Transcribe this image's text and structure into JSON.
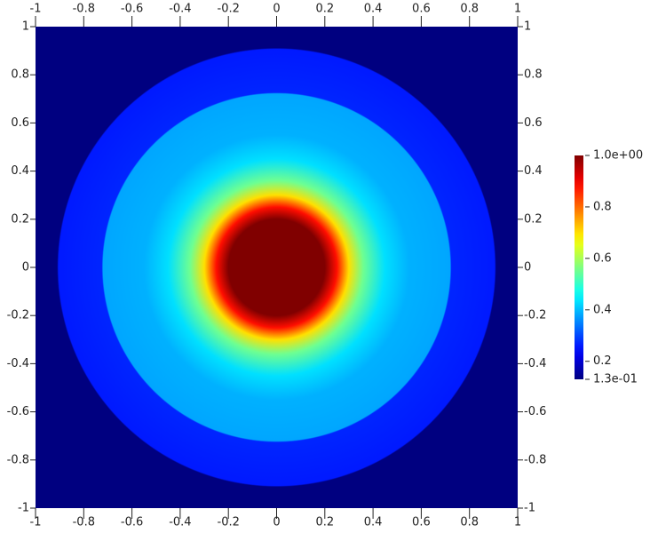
{
  "chart_data": {
    "type": "heatmap",
    "colormap": "jet",
    "xlim": [
      -1,
      1
    ],
    "ylim": [
      -1,
      1
    ],
    "xticks": [
      -1,
      -0.8,
      -0.6,
      -0.4,
      -0.2,
      0,
      0.2,
      0.4,
      0.6,
      0.8,
      1
    ],
    "yticks": [
      -1,
      -0.8,
      -0.6,
      -0.4,
      -0.2,
      0,
      0.2,
      0.4,
      0.6,
      0.8,
      1
    ],
    "radial_profile": {
      "r": [
        0,
        0.2,
        0.25,
        0.3,
        0.36,
        0.45,
        0.55,
        0.72,
        0.725,
        0.905,
        0.91,
        1.45
      ],
      "values": [
        1,
        1,
        0.88,
        0.7,
        0.55,
        0.43,
        0.39,
        0.38,
        0.27,
        0.26,
        0.13,
        0.13
      ]
    },
    "colorbar": {
      "lim": [
        0.13,
        1
      ],
      "ticks": [
        {
          "value": 1,
          "label": "1.0e+00"
        },
        0.8,
        0.6,
        0.4,
        0.2,
        {
          "value": 0.13,
          "label": "1.3e-01"
        }
      ]
    }
  }
}
